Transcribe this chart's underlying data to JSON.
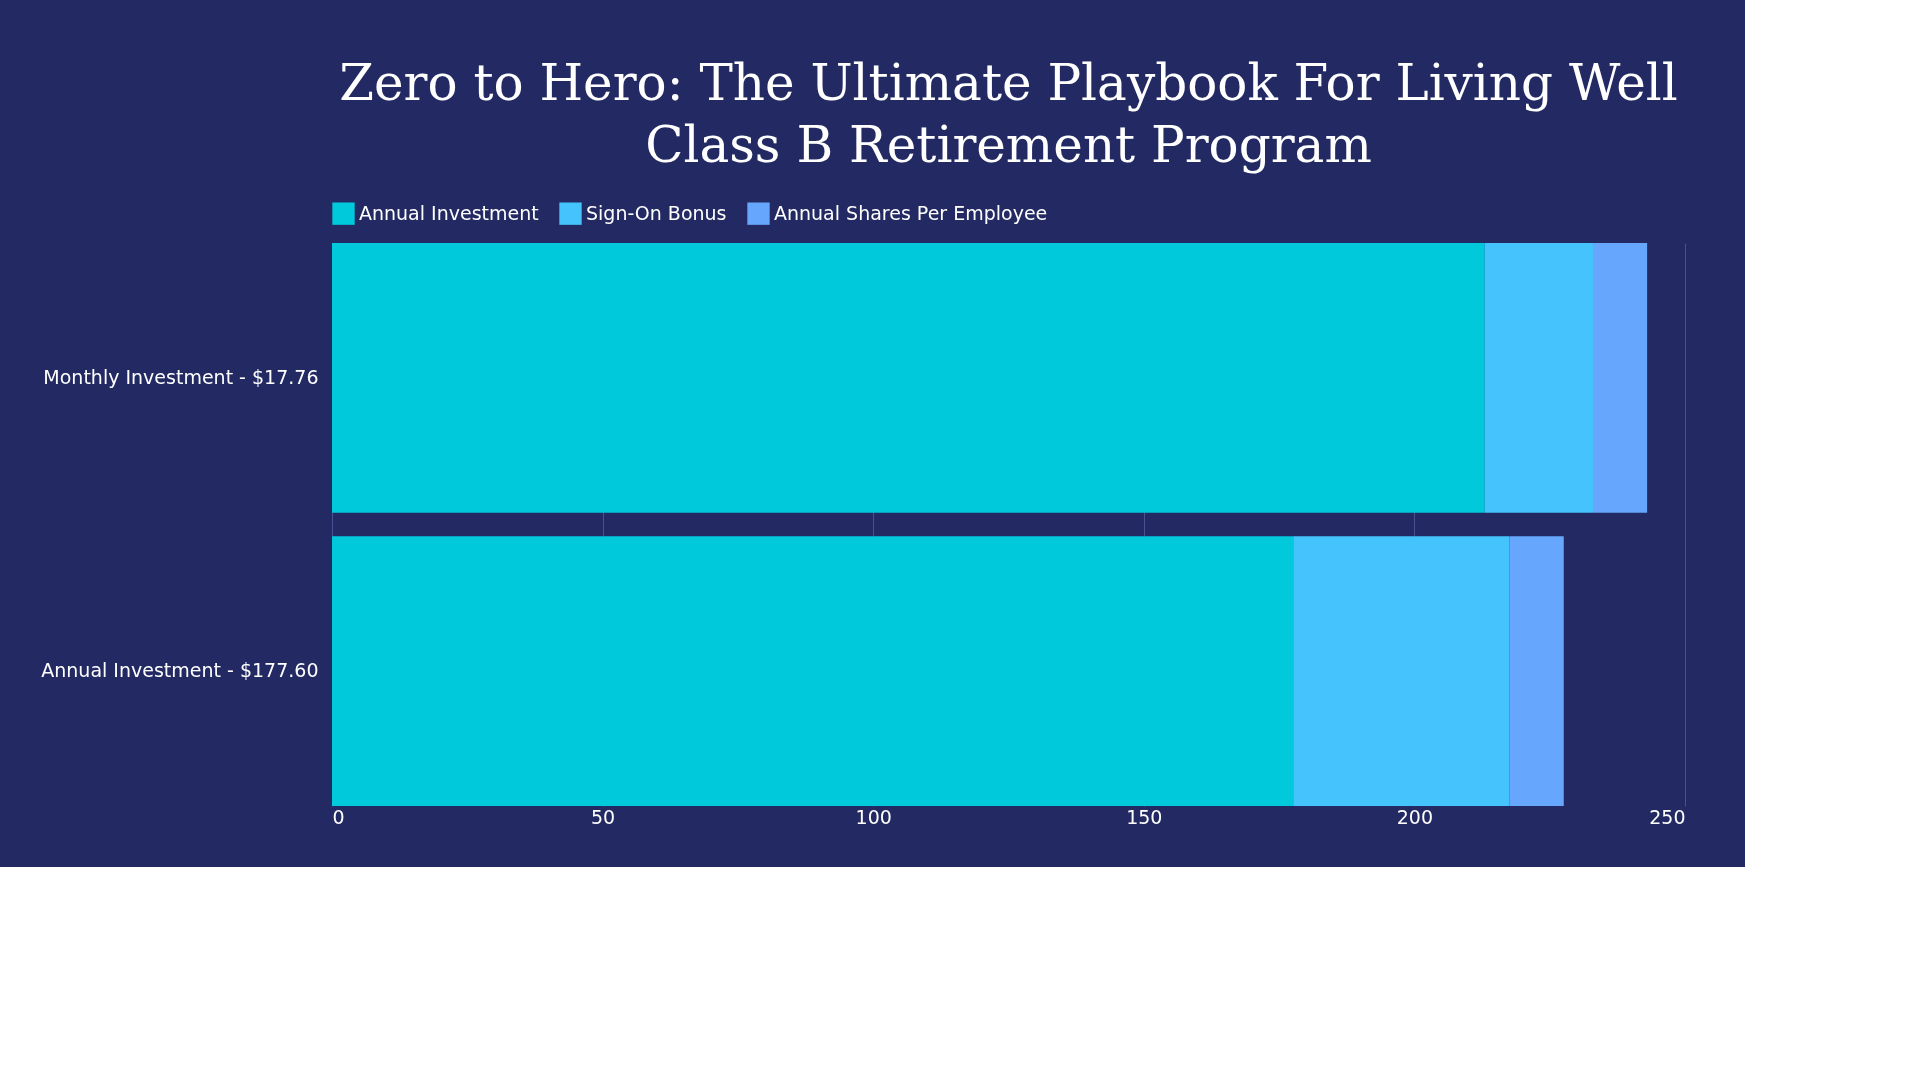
{
  "chart_data": {
    "type": "bar",
    "orientation": "horizontal",
    "stacked": true,
    "title": [
      "Zero to Hero: The Ultimate Playbook For Living Well",
      "Class B Retirement Program"
    ],
    "categories": [
      "Monthly Investment - $17.76",
      "Annual Investment - $177.60"
    ],
    "series": [
      {
        "name": "Annual Investment",
        "color": "#00c9dc",
        "values": [
          213,
          177.6
        ]
      },
      {
        "name": "Sign-On Bonus",
        "color": "#45c3fc",
        "values": [
          20,
          40
        ]
      },
      {
        "name": "Annual Shares Per Employee",
        "color": "#66a6fc",
        "values": [
          10,
          10
        ]
      }
    ],
    "xlim": [
      0,
      250
    ],
    "xticks": [
      0,
      50,
      100,
      150,
      200,
      250
    ],
    "grid": "x",
    "legend": "top"
  }
}
